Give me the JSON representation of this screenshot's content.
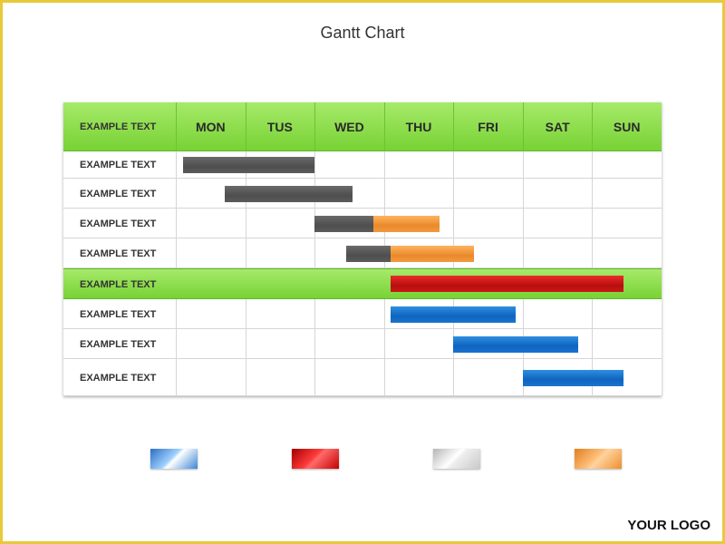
{
  "title": "Gantt Chart",
  "logo_text": "YOUR LOGO",
  "colors": {
    "frame": "#e8c93a",
    "header_green": "#8cdd4a",
    "gray": "#555555",
    "orange": "#f0923a",
    "red": "#c41414",
    "blue": "#1a70cc"
  },
  "chart_data": {
    "type": "gantt",
    "title": "Gantt Chart",
    "header_label": "EXAMPLE TEXT",
    "days": [
      "MON",
      "TUS",
      "WED",
      "THU",
      "FRI",
      "SAT",
      "SUN"
    ],
    "tasks": [
      {
        "label": "EXAMPLE TEXT",
        "highlight": false,
        "segments": [
          {
            "start": 0.1,
            "end": 2.0,
            "color": "gray"
          }
        ]
      },
      {
        "label": "EXAMPLE TEXT",
        "highlight": false,
        "segments": [
          {
            "start": 0.7,
            "end": 2.55,
            "color": "gray"
          }
        ]
      },
      {
        "label": "EXAMPLE TEXT",
        "highlight": false,
        "segments": [
          {
            "start": 2.0,
            "end": 2.85,
            "color": "gray"
          },
          {
            "start": 2.85,
            "end": 3.8,
            "color": "orange"
          }
        ]
      },
      {
        "label": "EXAMPLE TEXT",
        "highlight": false,
        "segments": [
          {
            "start": 2.45,
            "end": 3.1,
            "color": "gray"
          },
          {
            "start": 3.1,
            "end": 4.3,
            "color": "orange"
          }
        ]
      },
      {
        "label": "EXAMPLE TEXT",
        "highlight": true,
        "segments": [
          {
            "start": 3.1,
            "end": 6.45,
            "color": "red"
          }
        ]
      },
      {
        "label": "EXAMPLE TEXT",
        "highlight": false,
        "segments": [
          {
            "start": 3.1,
            "end": 4.9,
            "color": "blue"
          }
        ]
      },
      {
        "label": "EXAMPLE TEXT",
        "highlight": false,
        "segments": [
          {
            "start": 4.0,
            "end": 5.8,
            "color": "blue"
          }
        ]
      },
      {
        "label": "EXAMPLE TEXT",
        "highlight": false,
        "segments": [
          {
            "start": 5.0,
            "end": 6.45,
            "color": "blue"
          }
        ]
      }
    ],
    "legend": [
      {
        "swatch": "blue"
      },
      {
        "swatch": "red"
      },
      {
        "swatch": "silver"
      },
      {
        "swatch": "orange"
      }
    ]
  }
}
